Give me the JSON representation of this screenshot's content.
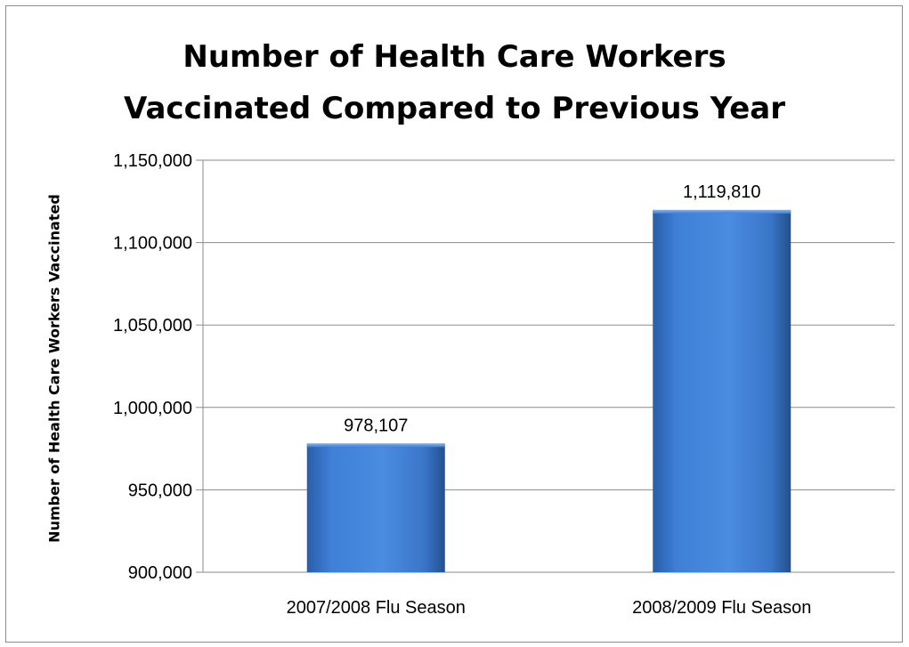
{
  "chart_data": {
    "type": "bar",
    "title_lines": [
      "Number of Health Care Workers",
      "Vaccinated Compared to Previous Year"
    ],
    "xlabel": "",
    "ylabel": "Number of Health Care Workers Vaccinated",
    "categories": [
      "2007/2008 Flu Season",
      "2008/2009 Flu Season"
    ],
    "values": [
      978107,
      1119810
    ],
    "value_labels": [
      "978,107",
      "1,119,810"
    ],
    "ylim": [
      900000,
      1150000
    ],
    "yticks": [
      900000,
      950000,
      1000000,
      1050000,
      1100000,
      1150000
    ],
    "ytick_labels": [
      "900,000",
      "950,000",
      "1,000,000",
      "1,050,000",
      "1,100,000",
      "1,150,000"
    ],
    "grid": true,
    "bar_color": "#3c7dd6",
    "legend": "none"
  }
}
